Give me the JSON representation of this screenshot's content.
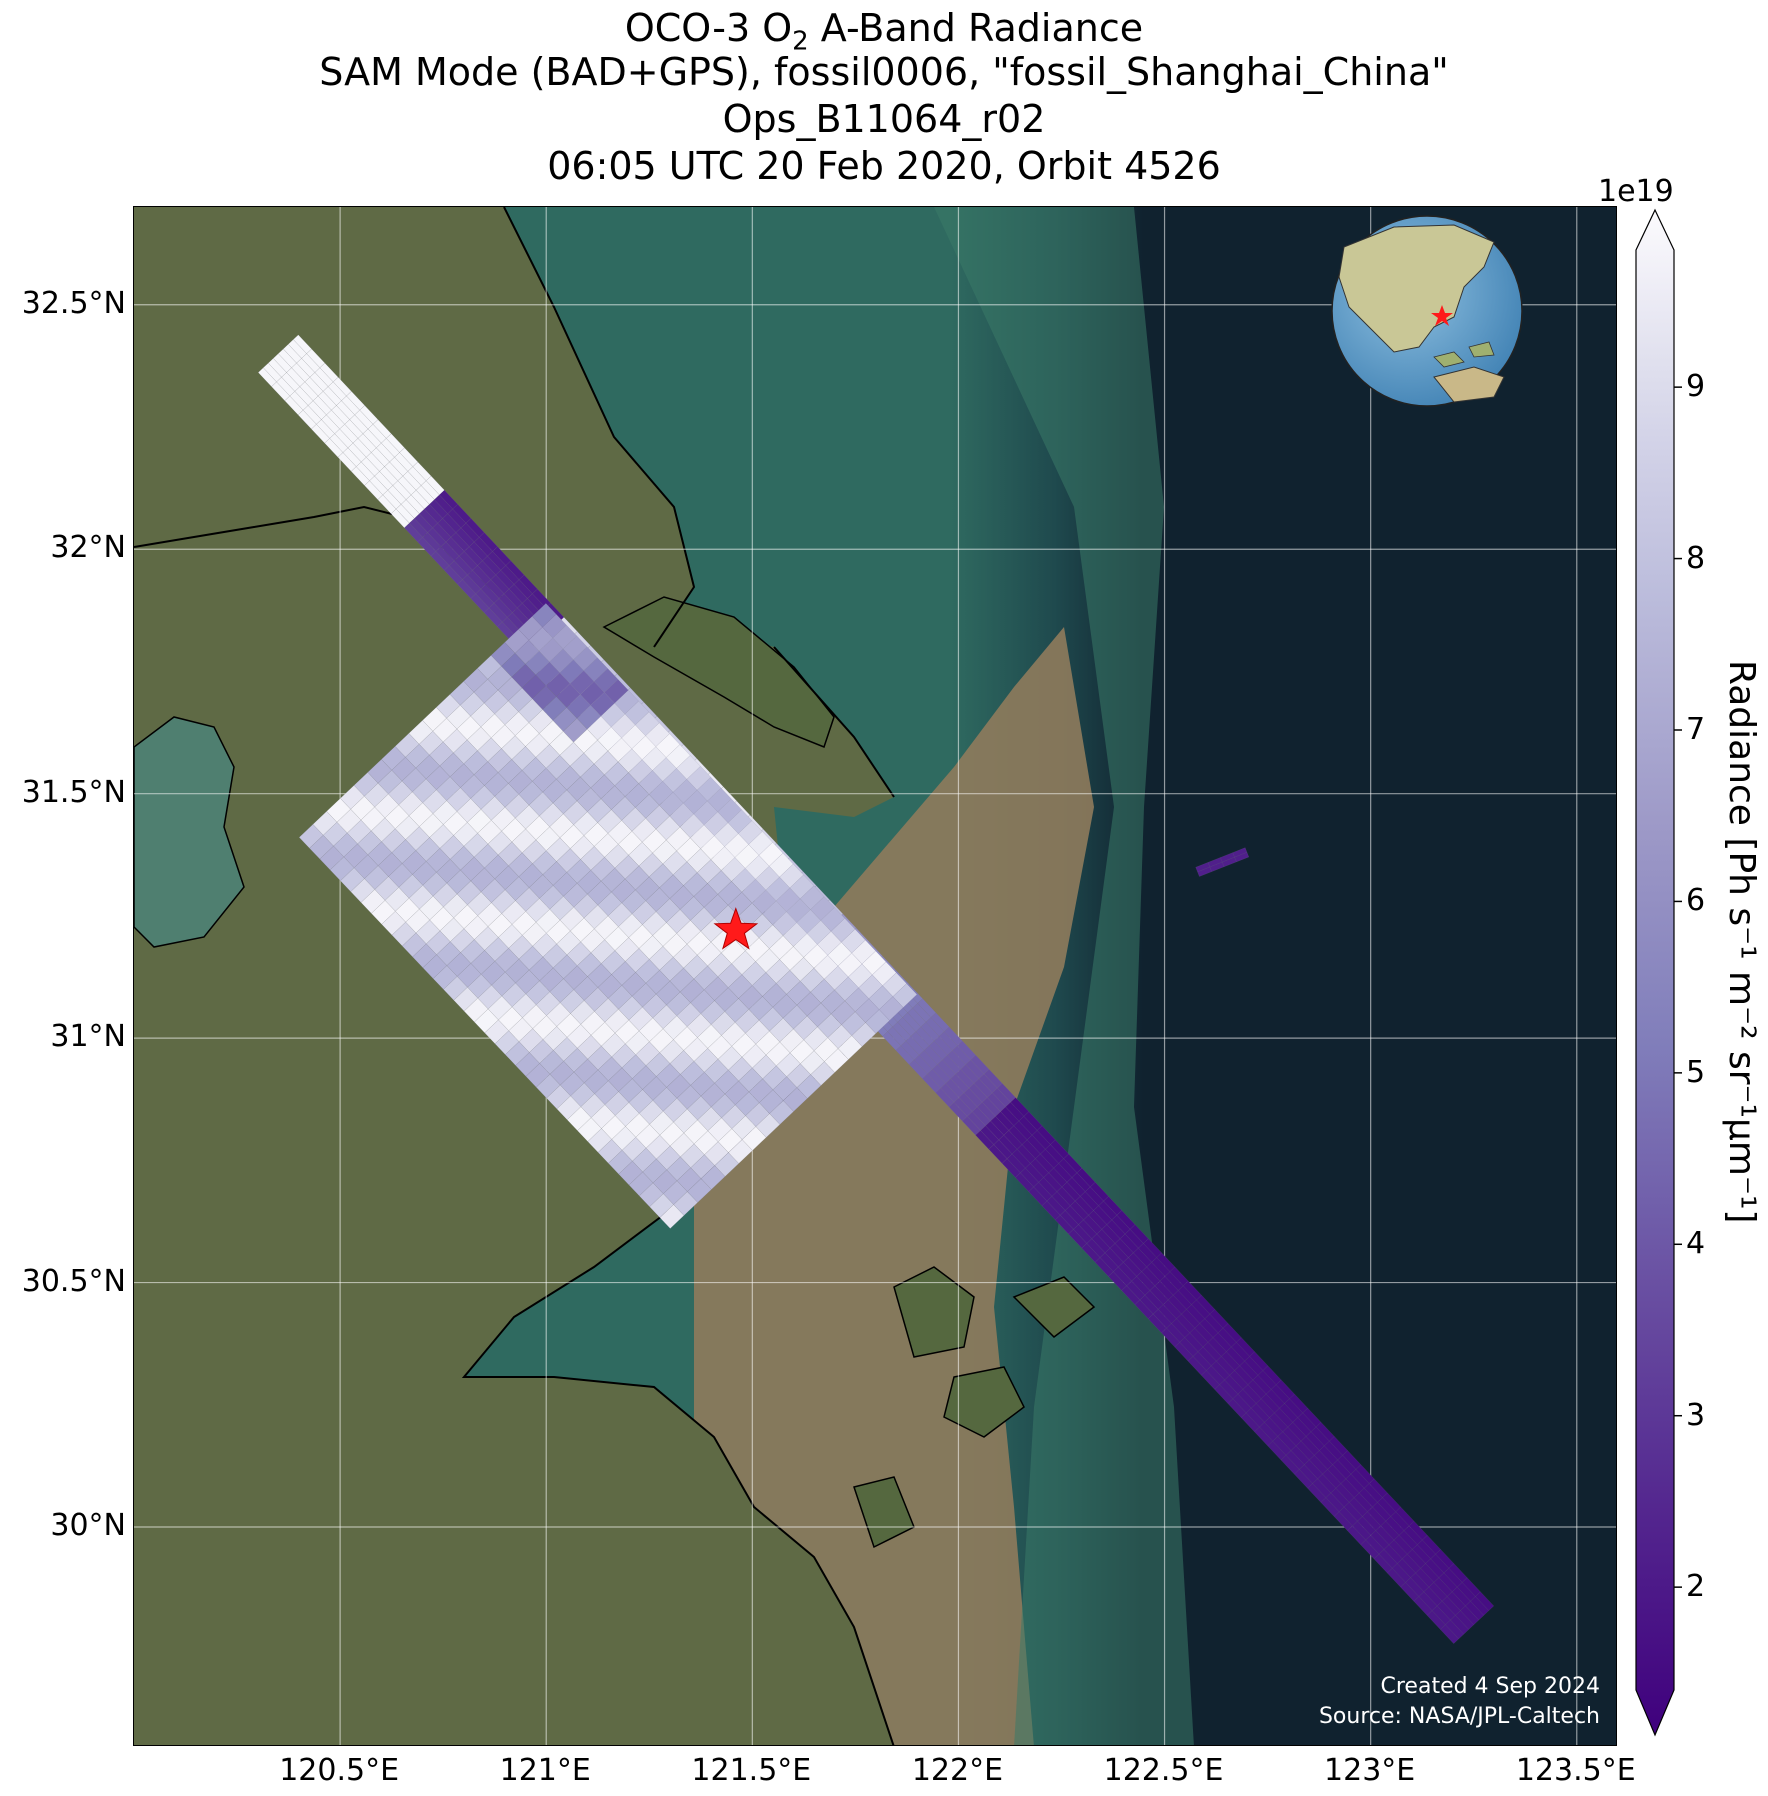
{
  "title": {
    "line1_prefix": "OCO-3 O",
    "line1_sub": "2",
    "line1_suffix": " A-Band Radiance",
    "line2": "SAM Mode (BAD+GPS), fossil0006, \"fossil_Shanghai_China\"",
    "line3": "Ops_B11064_r02",
    "line4": "06:05 UTC 20 Feb 2020, Orbit 4526"
  },
  "map": {
    "lon_range": [
      120.0,
      123.6
    ],
    "lat_range": [
      29.55,
      32.7
    ],
    "lon_ticks": [
      "120.5°E",
      "121°E",
      "121.5°E",
      "122°E",
      "122.5°E",
      "123°E",
      "123.5°E"
    ],
    "lon_tick_values": [
      120.5,
      121.0,
      121.5,
      122.0,
      122.5,
      123.0,
      123.5
    ],
    "lat_ticks": [
      "32.5°N",
      "32°N",
      "31.5°N",
      "31°N",
      "30.5°N",
      "30°N"
    ],
    "lat_tick_values": [
      32.5,
      32.0,
      31.5,
      31.0,
      30.5,
      30.0
    ],
    "gridlines": true,
    "target_marker": {
      "name": "fossil_Shanghai_China",
      "lon": 121.46,
      "lat": 31.22,
      "color": "#ff1a1a"
    },
    "credit_line1": "Created 4 Sep 2024",
    "credit_line2": "Source: NASA/JPL-Caltech",
    "inset": "globe-locator"
  },
  "colorbar": {
    "label_main": "Radiance [Ph s",
    "label_full": "Radiance [Ph s⁻¹ m⁻² sr⁻¹μm⁻¹]",
    "exponent": "1e19",
    "min": 1.4,
    "max": 9.8,
    "ticks": [
      "2",
      "3",
      "4",
      "5",
      "6",
      "7",
      "8",
      "9"
    ],
    "tick_values": [
      2,
      3,
      4,
      5,
      6,
      7,
      8,
      9
    ],
    "colormap": "Purples_r",
    "extend": "both"
  },
  "colors": {
    "land": "#5f6a45",
    "sea_turbid": "#9c8262",
    "sea_shelf": "#2f6a60",
    "sea_deep": "#10222f",
    "radiance_low": "#3f007d",
    "radiance_high": "#fcfbfd"
  }
}
